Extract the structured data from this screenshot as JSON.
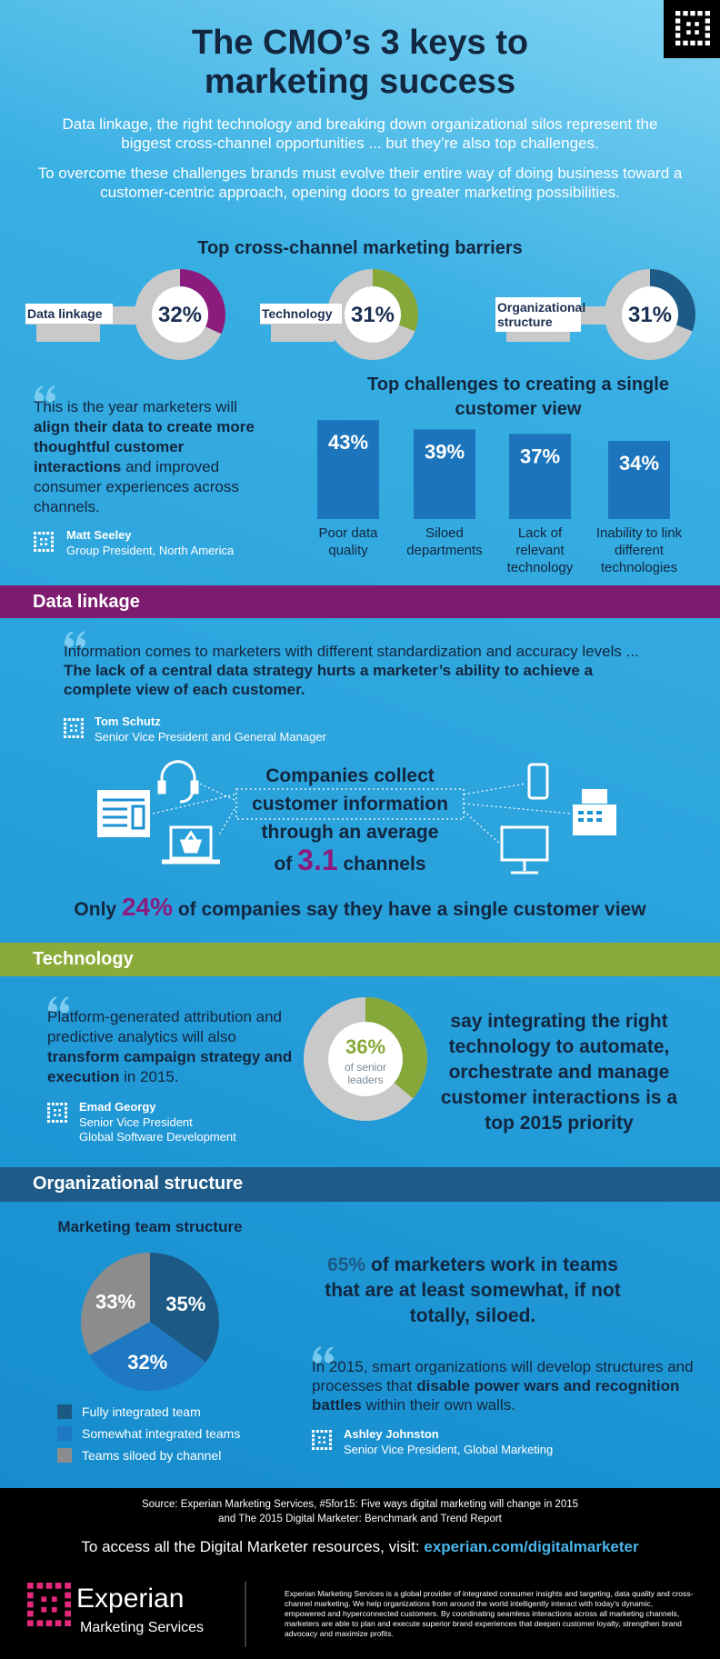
{
  "header": {
    "title": [
      "The CMO’s 3 keys to",
      "marketing success"
    ],
    "intro": [
      "Data linkage, the right technology and breaking down organizational silos represent the biggest cross-channel opportunities ... but they’re also top challenges.",
      "To overcome these challenges brands must evolve their entire way of doing business toward a customer-centric approach, opening doors to greater marketing possibilities."
    ]
  },
  "chart_data": [
    {
      "type": "donut",
      "title": "Top cross-channel marketing barriers",
      "categories": [
        "Data linkage",
        "Technology",
        "Organizational structure"
      ],
      "values": [
        32,
        31,
        31
      ],
      "value_labels": [
        "32%",
        "31%",
        "31%"
      ],
      "colors": [
        "#8b1c7d",
        "#86a83b",
        "#1d5a86"
      ],
      "track_color": "#c9c9c9"
    },
    {
      "type": "bar",
      "title": "Top challenges to creating a single customer view",
      "categories": [
        "Poor data quality",
        "Siloed departments",
        "Lack of relevant technology",
        "Inability to link different technologies"
      ],
      "values": [
        43,
        39,
        37,
        34
      ],
      "value_labels": [
        "43%",
        "39%",
        "37%",
        "34%"
      ],
      "color": "#1c75bc"
    },
    {
      "type": "donut",
      "categories": [
        "of senior leaders"
      ],
      "values": [
        36
      ],
      "value_labels": [
        "36%"
      ],
      "colors": [
        "#86a83b"
      ],
      "track_color": "#c9c9c9",
      "caption": "say integrating the right technology to automate, orchestrate and manage customer interactions is a top 2015 priority"
    },
    {
      "type": "pie",
      "title": "Marketing team structure",
      "categories": [
        "Fully integrated team",
        "Somewhat integrated teams",
        "Teams siloed by channel"
      ],
      "values": [
        35,
        32,
        33
      ],
      "value_labels": [
        "35%",
        "32%",
        "33%"
      ],
      "colors": [
        "#1c5a85",
        "#1e78c2",
        "#8c8c8c"
      ]
    }
  ],
  "intro_quote": {
    "parts": [
      "This is the year marketers will ",
      "align their data to create more thoughtful customer interactions",
      " and improved consumer experiences across channels."
    ],
    "name": "Matt Seeley",
    "role": [
      "Group President, North America"
    ]
  },
  "sections": [
    {
      "heading": "Data linkage",
      "quote": {
        "parts": [
          "Information comes to marketers with different standardization and accuracy levels ... ",
          "The lack of a central data strategy hurts a marketer’s ability to achieve a complete view of each customer."
        ],
        "name": "Tom Schutz",
        "role": [
          "Senior Vice President and General Manager"
        ]
      },
      "channels": [
        "Companies collect",
        "customer information",
        "through an average",
        "of",
        3.1,
        "channels"
      ],
      "stat": [
        "Only",
        "24%",
        "of companies say they have a single customer view"
      ]
    },
    {
      "heading": "Technology",
      "quote": {
        "parts": [
          "Platform-generated attribution and predictive analytics will also ",
          "transform campaign strategy and execution",
          " in 2015."
        ],
        "name": "Emad Georgy",
        "role": [
          "Senior Vice President",
          "Global Software Development"
        ]
      }
    },
    {
      "heading": "Organizational structure",
      "stat": [
        "65%",
        "of marketers work in teams that are at least somewhat, if not totally, siloed."
      ],
      "quote": {
        "parts": [
          "In 2015, smart organizations will develop structures and processes that ",
          "disable power wars and recognition battles",
          " within their own walls."
        ],
        "name": "Ashley Johnston",
        "role": [
          "Senior Vice President, Global Marketing"
        ]
      }
    }
  ],
  "footer": {
    "source": [
      "Source: Experian Marketing Services, #5for15: Five ways digital marketing will change in 2015",
      "and The 2015 Digital Marketer: Benchmark and Trend Report"
    ],
    "access": "To access all the Digital Marketer resources, visit:",
    "link": "experian.com/digitalmarketer",
    "brand": "Experian",
    "brand_sub": "Marketing Services",
    "about": "Experian Marketing Services is a global provider of integrated consumer insights and targeting, data quality and cross-channel marketing. We help organizations from around the world intelligently interact with today's dynamic, empowered and hyperconnected customers. By coordinating seamless interactions across all marketing channels, marketers are able to plan and execute superior brand experiences that deepen customer loyalty, strengthen brand advocacy and maximize profits."
  }
}
